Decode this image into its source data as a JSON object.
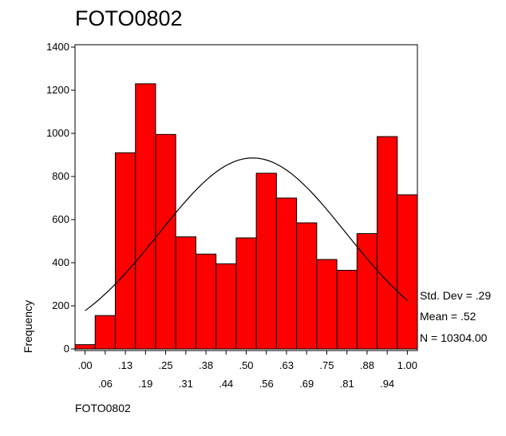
{
  "chart_data": {
    "type": "bar",
    "title": "FOTO0802",
    "xlabel": "FOTO0802",
    "ylabel": "Frequency",
    "x_tick_labels_top": [
      ".00",
      ".13",
      ".25",
      ".38",
      ".50",
      ".63",
      ".75",
      ".88",
      "1.00"
    ],
    "x_tick_labels_bottom": [
      ".06",
      ".19",
      ".31",
      ".44",
      ".56",
      ".69",
      ".81",
      ".94"
    ],
    "y_ticks": [
      0,
      200,
      400,
      600,
      800,
      1000,
      1200,
      1400
    ],
    "ylim": [
      0,
      1400
    ],
    "bin_centers": [
      0.0,
      0.0625,
      0.125,
      0.1875,
      0.25,
      0.3125,
      0.375,
      0.4375,
      0.5,
      0.5625,
      0.625,
      0.6875,
      0.75,
      0.8125,
      0.875,
      0.9375,
      1.0
    ],
    "values": [
      20,
      155,
      910,
      1230,
      995,
      520,
      440,
      395,
      515,
      815,
      700,
      585,
      415,
      365,
      535,
      985,
      715
    ],
    "bar_color": "#ff0000",
    "normal_curve": {
      "mean": 0.52,
      "std_dev": 0.29,
      "n": 10304.0,
      "bin_width": 0.0625
    },
    "stats": {
      "std_dev_label": "Std. Dev = .29",
      "mean_label": "Mean = .52",
      "n_label": "N = 10304.00"
    },
    "grid": false
  }
}
